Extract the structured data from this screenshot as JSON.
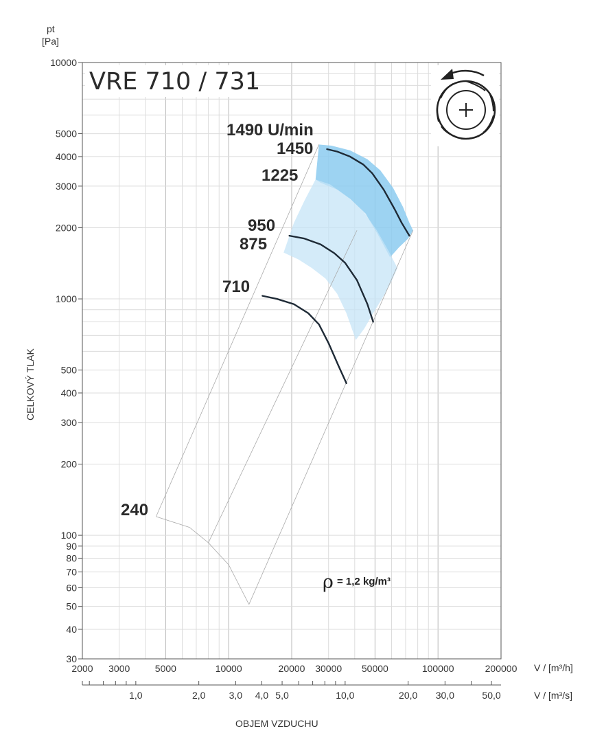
{
  "chart_data": {
    "type": "line",
    "title": "VRE 710 / 731",
    "y_unit_top": "pt",
    "y_unit_bottom": "[Pa]",
    "ylabel": "CELKOVÝ TLAK",
    "xlabel": "OBJEM VZDUCHU",
    "x_unit_m3h": "V / [m³/h]",
    "x_unit_m3s": "V / [m³/s]",
    "density_label": "= 1,2 kg/m³",
    "density_symbol": "ρ",
    "x_scale": "log",
    "y_scale": "log",
    "xlim": [
      2000,
      200000
    ],
    "ylim": [
      30,
      10000
    ],
    "grid": true,
    "y_ticks": [
      "10000",
      "5000",
      "4000",
      "3000",
      "2000",
      "1000",
      "500",
      "400",
      "300",
      "200",
      "100",
      "90",
      "80",
      "70",
      "60",
      "50",
      "40",
      "30"
    ],
    "x_ticks_m3h": [
      "2000",
      "3000",
      "5000",
      "10000",
      "20000",
      "30000",
      "50000",
      "100000",
      "200000"
    ],
    "x_ticks_m3s": [
      "1,0",
      "2,0",
      "3,0",
      "4,0",
      "5,0",
      "10,0",
      "20,0",
      "30,0",
      "50,0"
    ],
    "speed_labels": [
      {
        "text": "1490 U/min",
        "rpm": 1490
      },
      {
        "text": "1450",
        "rpm": 1450
      },
      {
        "text": "1225",
        "rpm": 1225
      },
      {
        "text": "950",
        "rpm": 950
      },
      {
        "text": "875",
        "rpm": 875
      },
      {
        "text": "710",
        "rpm": 710
      },
      {
        "text": "240",
        "rpm": 240
      }
    ],
    "series": [
      {
        "rpm": 1450,
        "x": [
          29500,
          33000,
          38000,
          44000,
          48500,
          55000,
          62000,
          67000,
          73000
        ],
        "y": [
          4300,
          4200,
          4000,
          3700,
          3400,
          2900,
          2400,
          2100,
          1850
        ]
      },
      {
        "rpm": 950,
        "x": [
          19500,
          23000,
          27500,
          32000,
          36000,
          41000,
          46000,
          49000
        ],
        "y": [
          1850,
          1800,
          1700,
          1560,
          1420,
          1200,
          950,
          800
        ]
      },
      {
        "rpm": 710,
        "x": [
          14500,
          17000,
          20500,
          24000,
          27000,
          30000,
          33500,
          36500
        ],
        "y": [
          1030,
          1000,
          950,
          870,
          780,
          650,
          520,
          440
        ]
      }
    ],
    "bands": [
      {
        "name": "",
        "color": "#8ccbf0",
        "opacity": 0.85,
        "x": [
          27000,
          31000,
          38000,
          46000,
          53000,
          61000,
          68000,
          73000,
          76000,
          72000,
          65000,
          59000,
          52000,
          45000,
          38000,
          33000,
          27500,
          26000
        ],
        "y": [
          4500,
          4450,
          4250,
          3900,
          3500,
          2950,
          2450,
          2100,
          1950,
          1800,
          1650,
          1500,
          1850,
          2300,
          2650,
          2900,
          3100,
          3200
        ]
      },
      {
        "name": "",
        "color": "#c6e4f7",
        "opacity": 0.75,
        "x": [
          26000,
          30500,
          37000,
          44000,
          51000,
          58000,
          64000,
          59000,
          54000,
          49000,
          44500,
          40500,
          36500,
          33000,
          29000,
          25000,
          21500,
          18300,
          20500,
          23000
        ],
        "y": [
          3200,
          3050,
          2700,
          2350,
          1950,
          1600,
          1350,
          1150,
          1000,
          870,
          750,
          670,
          870,
          1050,
          1220,
          1350,
          1470,
          1570,
          2100,
          2600
        ]
      }
    ],
    "envelope_lines": [
      {
        "x": [
          27000,
          4500
        ],
        "y": [
          4500,
          120
        ]
      },
      {
        "x": [
          41000,
          8000
        ],
        "y": [
          1950,
          93
        ]
      },
      {
        "x": [
          76000,
          12500
        ],
        "y": [
          1950,
          51
        ]
      },
      {
        "x": [
          4500,
          6500,
          8000,
          10000,
          12500
        ],
        "y": [
          120,
          108,
          93,
          75,
          51
        ]
      }
    ]
  }
}
